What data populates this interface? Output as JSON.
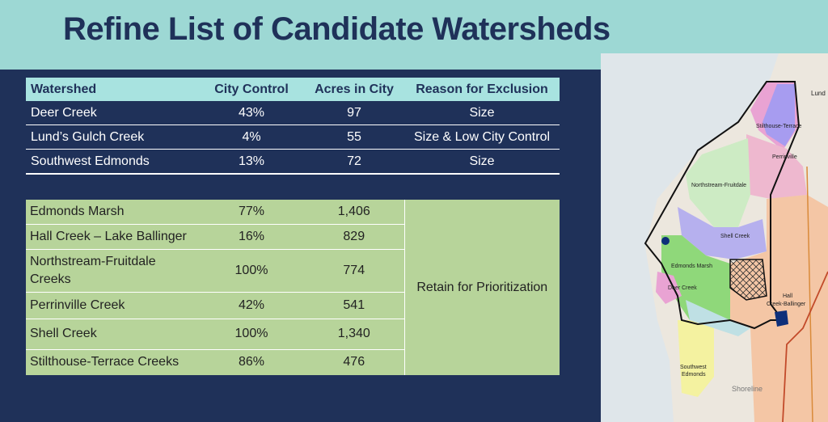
{
  "title": "Refine List of Candidate Watersheds",
  "excluded_table": {
    "headers": [
      "Watershed",
      "City Control",
      "Acres in City",
      "Reason for Exclusion"
    ],
    "rows": [
      [
        "Deer Creek",
        "43%",
        "97",
        "Size"
      ],
      [
        "Lund’s Gulch Creek",
        "4%",
        "55",
        "Size & Low City Control"
      ],
      [
        "Southwest Edmonds",
        "13%",
        "72",
        "Size"
      ]
    ]
  },
  "retained_table": {
    "reason": "Retain for Prioritization",
    "rows": [
      [
        "Edmonds Marsh",
        "77%",
        "1,406"
      ],
      [
        "Hall Creek – Lake Ballinger",
        "16%",
        "829"
      ],
      [
        "Northstream-Fruitdale Creeks",
        "100%",
        "774"
      ],
      [
        "Perrinville Creek",
        "42%",
        "541"
      ],
      [
        "Shell Creek",
        "100%",
        "1,340"
      ],
      [
        "Stilthouse-Terrace Creeks",
        "86%",
        "476"
      ]
    ]
  },
  "map": {
    "labels": {
      "lund": "Lund",
      "stilthouse": "Stilthouse-Terrace",
      "perrinville": "Perrinville",
      "northstream": "Northstream-Fruitdale",
      "shell": "Shell Creek",
      "edmonds_marsh": "Edmonds Marsh",
      "deer": "Deer Creek",
      "hall_1": "Hall",
      "hall_2": "Creek-Ballinger",
      "southwest_1": "Southwest",
      "southwest_2": "Edmonds",
      "shoreline": "Shoreline"
    }
  }
}
